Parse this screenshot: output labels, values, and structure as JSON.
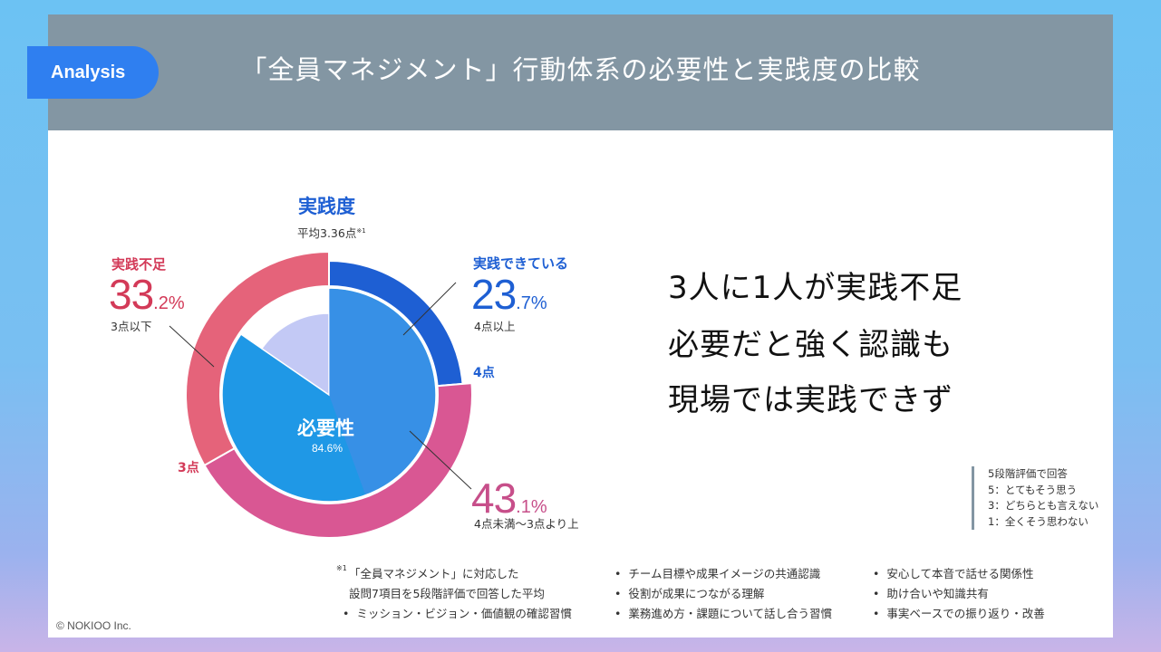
{
  "badge": "Analysis",
  "title": "「全員マネジメント」行動体系の必要性と実践度の比較",
  "chart_data": [
    {
      "type": "pie",
      "title": "実践度",
      "subtitle": "平均3.36点",
      "subtitle_note": "※1",
      "slices": [
        {
          "label": "実践できている",
          "value": 23.7,
          "value_int": "23",
          "value_dec": ".7%",
          "sublabel": "4点以上",
          "color": "#1e5fd3"
        },
        {
          "label": "",
          "value": 43.1,
          "value_int": "43",
          "value_dec": ".1%",
          "sublabel": "4点未満〜3点より上",
          "color": "#d95793"
        },
        {
          "label": "実践不足",
          "value": 33.2,
          "value_int": "33",
          "value_dec": ".2%",
          "sublabel": "3点以下",
          "color": "#e5637a"
        }
      ],
      "boundary_labels": [
        "4点",
        "3点"
      ]
    },
    {
      "type": "pie",
      "title": "必要性",
      "value_label": "84.6%",
      "slices": [
        {
          "value": 84.6,
          "color": "#1f98e6"
        },
        {
          "value": 15.4,
          "color": "#c3c9f5"
        }
      ]
    }
  ],
  "message_lines": [
    "3人に1人が実践不足",
    "必要だと強く認識も",
    "現場では実践できず"
  ],
  "legend": [
    "5段階評価で回答",
    "5：とてもそう思う",
    "3：どちらとも言えない",
    "1：全くそう思わない"
  ],
  "footnote": {
    "mark": "※1",
    "lines": [
      "「全員マネジメント」に対応した",
      "設問7項目を5段階評価で回答した平均"
    ]
  },
  "bullets": [
    "ミッション・ビジョン・価値観の確認習慣",
    "チーム目標や成果イメージの共通認識",
    "役割が成果につながる理解",
    "業務進め方・課題について話し合う習慣",
    "安心して本音で話せる関係性",
    "助け合いや知識共有",
    "事実ベースでの振り返り・改善"
  ],
  "copyright": "© NOKIOO Inc.",
  "colors": {
    "header": "#8396a3",
    "badge": "#2f7ff0",
    "blue_text": "#1e5fd3",
    "pink_text": "#c74f8a",
    "red_text": "#d33a58"
  }
}
